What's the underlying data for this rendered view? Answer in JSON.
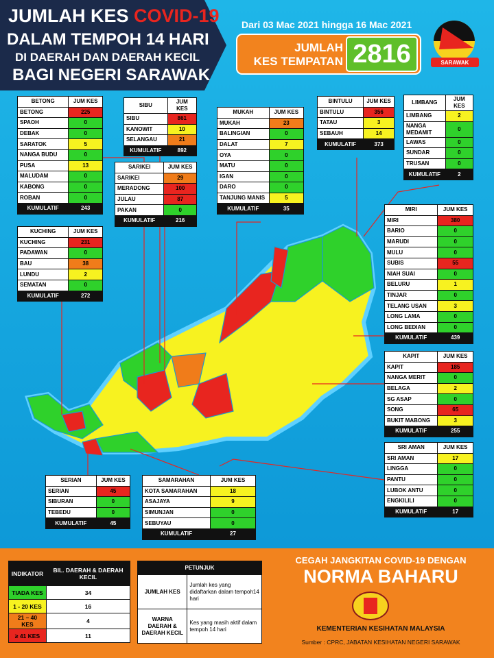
{
  "header": {
    "title_a": "JUMLAH KES",
    "title_b": "COVID-19",
    "title_line2": "DALAM TEMPOH 14 HARI",
    "title_line3": "DI DAERAH DAN DAERAH KECIL",
    "title_line4": "BAGI NEGERI SARAWAK",
    "date_range": "Dari 03 Mac 2021 hingga 16 Mac 2021",
    "total_label_1": "JUMLAH",
    "total_label_2": "KES TEMPATAN",
    "total_value": 2816,
    "logo_text": "SARAWAK"
  },
  "divisions": [
    {
      "name": "BETONG",
      "column": "JUM KES",
      "rows": [
        {
          "name": "BETONG",
          "cases": 225,
          "color": "#e8251f"
        },
        {
          "name": "SPAOH",
          "cases": 0,
          "color": "#2fd12b"
        },
        {
          "name": "DEBAK",
          "cases": 0,
          "color": "#2fd12b"
        },
        {
          "name": "SARATOK",
          "cases": 5,
          "color": "#f7f220"
        },
        {
          "name": "NANGA BUDU",
          "cases": 0,
          "color": "#2fd12b"
        },
        {
          "name": "PUSA",
          "cases": 13,
          "color": "#f7f220"
        },
        {
          "name": "MALUDAM",
          "cases": 0,
          "color": "#2fd12b"
        },
        {
          "name": "KABONG",
          "cases": 0,
          "color": "#2fd12b"
        },
        {
          "name": "ROBAN",
          "cases": 0,
          "color": "#2fd12b"
        }
      ],
      "total_label": "KUMULATIF",
      "total": 243
    },
    {
      "name": "SIBU",
      "column": "JUM KES",
      "rows": [
        {
          "name": "SIBU",
          "cases": 861,
          "color": "#e8251f"
        },
        {
          "name": "KANOWIT",
          "cases": 10,
          "color": "#f7f220"
        },
        {
          "name": "SELANGAU",
          "cases": 21,
          "color": "#f07c1a"
        }
      ],
      "total_label": "KUMULATIF",
      "total": 892
    },
    {
      "name": "SARIKEI",
      "column": "JUM KES",
      "rows": [
        {
          "name": "SARIKEI",
          "cases": 29,
          "color": "#f07c1a"
        },
        {
          "name": "MERADONG",
          "cases": 100,
          "color": "#e8251f"
        },
        {
          "name": "JULAU",
          "cases": 87,
          "color": "#e8251f"
        },
        {
          "name": "PAKAN",
          "cases": 0,
          "color": "#2fd12b"
        }
      ],
      "total_label": "KUMULATIF",
      "total": 216
    },
    {
      "name": "MUKAH",
      "column": "JUM KES",
      "rows": [
        {
          "name": "MUKAH",
          "cases": 23,
          "color": "#f07c1a"
        },
        {
          "name": "BALINGIAN",
          "cases": 0,
          "color": "#2fd12b"
        },
        {
          "name": "DALAT",
          "cases": 7,
          "color": "#f7f220"
        },
        {
          "name": "OYA",
          "cases": 0,
          "color": "#2fd12b"
        },
        {
          "name": "MATU",
          "cases": 0,
          "color": "#2fd12b"
        },
        {
          "name": "IGAN",
          "cases": 0,
          "color": "#2fd12b"
        },
        {
          "name": "DARO",
          "cases": 0,
          "color": "#2fd12b"
        },
        {
          "name": "TANJUNG MANIS",
          "cases": 5,
          "color": "#f7f220"
        }
      ],
      "total_label": "KUMULATIF",
      "total": 35
    },
    {
      "name": "BINTULU",
      "column": "JUM KES",
      "rows": [
        {
          "name": "BINTULU",
          "cases": 356,
          "color": "#e8251f"
        },
        {
          "name": "TATAU",
          "cases": 3,
          "color": "#f7f220"
        },
        {
          "name": "SEBAUH",
          "cases": 14,
          "color": "#f7f220"
        }
      ],
      "total_label": "KUMULATIF",
      "total": 373
    },
    {
      "name": "LIMBANG",
      "column": "JUM KES",
      "rows": [
        {
          "name": "LIMBANG",
          "cases": 2,
          "color": "#f7f220"
        },
        {
          "name": "NANGA MEDAMIT",
          "cases": 0,
          "color": "#2fd12b"
        },
        {
          "name": "LAWAS",
          "cases": 0,
          "color": "#2fd12b"
        },
        {
          "name": "SUNDAR",
          "cases": 0,
          "color": "#2fd12b"
        },
        {
          "name": "TRUSAN",
          "cases": 0,
          "color": "#2fd12b"
        }
      ],
      "total_label": "KUMULATIF",
      "total": 2
    },
    {
      "name": "KUCHING",
      "column": "JUM KES",
      "rows": [
        {
          "name": "KUCHING",
          "cases": 231,
          "color": "#e8251f"
        },
        {
          "name": "PADAWAN",
          "cases": 0,
          "color": "#2fd12b"
        },
        {
          "name": "BAU",
          "cases": 38,
          "color": "#f07c1a"
        },
        {
          "name": "LUNDU",
          "cases": 2,
          "color": "#f7f220"
        },
        {
          "name": "SEMATAN",
          "cases": 0,
          "color": "#2fd12b"
        }
      ],
      "total_label": "KUMULATIF",
      "total": 272
    },
    {
      "name": "MIRI",
      "column": "JUM KES",
      "rows": [
        {
          "name": "MIRI",
          "cases": 380,
          "color": "#e8251f"
        },
        {
          "name": "BARIO",
          "cases": 0,
          "color": "#2fd12b"
        },
        {
          "name": "MARUDI",
          "cases": 0,
          "color": "#2fd12b"
        },
        {
          "name": "MULU",
          "cases": 0,
          "color": "#2fd12b"
        },
        {
          "name": "SUBIS",
          "cases": 55,
          "color": "#e8251f"
        },
        {
          "name": "NIAH SUAI",
          "cases": 0,
          "color": "#2fd12b"
        },
        {
          "name": "BELURU",
          "cases": 1,
          "color": "#f7f220"
        },
        {
          "name": "TINJAR",
          "cases": 0,
          "color": "#2fd12b"
        },
        {
          "name": "TELANG USAN",
          "cases": 3,
          "color": "#f7f220"
        },
        {
          "name": "LONG LAMA",
          "cases": 0,
          "color": "#2fd12b"
        },
        {
          "name": "LONG BEDIAN",
          "cases": 0,
          "color": "#2fd12b"
        }
      ],
      "total_label": "KUMULATIF",
      "total": 439
    },
    {
      "name": "KAPIT",
      "column": "JUM KES",
      "rows": [
        {
          "name": "KAPIT",
          "cases": 185,
          "color": "#e8251f"
        },
        {
          "name": "NANGA MERIT",
          "cases": 0,
          "color": "#2fd12b"
        },
        {
          "name": "BELAGA",
          "cases": 2,
          "color": "#f7f220"
        },
        {
          "name": "SG ASAP",
          "cases": 0,
          "color": "#2fd12b"
        },
        {
          "name": "SONG",
          "cases": 65,
          "color": "#e8251f"
        },
        {
          "name": "BUKIT MABONG",
          "cases": 3,
          "color": "#f7f220"
        }
      ],
      "total_label": "KUMULATIF",
      "total": 255
    },
    {
      "name": "SRI AMAN",
      "column": "JUM KES",
      "rows": [
        {
          "name": "SRI AMAN",
          "cases": 17,
          "color": "#f7f220"
        },
        {
          "name": "LINGGA",
          "cases": 0,
          "color": "#2fd12b"
        },
        {
          "name": "PANTU",
          "cases": 0,
          "color": "#2fd12b"
        },
        {
          "name": "LUBOK ANTU",
          "cases": 0,
          "color": "#2fd12b"
        },
        {
          "name": "ENGKILILI",
          "cases": 0,
          "color": "#2fd12b"
        }
      ],
      "total_label": "KUMULATIF",
      "total": 17
    },
    {
      "name": "SERIAN",
      "column": "JUM KES",
      "rows": [
        {
          "name": "SERIAN",
          "cases": 45,
          "color": "#e8251f"
        },
        {
          "name": "SIBURAN",
          "cases": 0,
          "color": "#2fd12b"
        },
        {
          "name": "TEBEDU",
          "cases": 0,
          "color": "#2fd12b"
        }
      ],
      "total_label": "KUMULATIF",
      "total": 45
    },
    {
      "name": "SAMARAHAN",
      "column": "JUM KES",
      "rows": [
        {
          "name": "KOTA SAMARAHAN",
          "cases": 18,
          "color": "#f7f220"
        },
        {
          "name": "ASAJAYA",
          "cases": 9,
          "color": "#f7f220"
        },
        {
          "name": "SIMUNJAN",
          "cases": 0,
          "color": "#2fd12b"
        },
        {
          "name": "SEBUYAU",
          "cases": 0,
          "color": "#2fd12b"
        }
      ],
      "total_label": "KUMULATIF",
      "total": 27
    }
  ],
  "legend": {
    "headers": [
      "INDIKATOR",
      "BIL. DAERAH & DAERAH KECIL"
    ],
    "rows": [
      {
        "label": "TIADA KES",
        "count": 34,
        "color": "#2fd12b"
      },
      {
        "label": "1 - 20 KES",
        "count": 16,
        "color": "#f7f220"
      },
      {
        "label": "21 – 40 KES",
        "count": 4,
        "color": "#f07c1a"
      },
      {
        "label": "≥ 41 KES",
        "count": 11,
        "color": "#e8251f"
      }
    ]
  },
  "guide": {
    "title": "PETUNJUK",
    "rows": [
      {
        "term": "JUMLAH KES",
        "desc": "Jumlah kes yang didaftarkan dalam tempoh14 hari"
      },
      {
        "term": "WARNA DAERAH & DAERAH KECIL",
        "desc": "Kes yang masih aktif dalam tempoh 14 hari"
      }
    ]
  },
  "footer": {
    "slogan_1": "CEGAH JANGKITAN COVID-19 DENGAN",
    "slogan_2": "NORMA BAHARU",
    "ministry": "KEMENTERIAN KESIHATAN MALAYSIA",
    "source": "Sumber : CPRC, JABATAN KESIHATAN NEGERI SARAWAK"
  }
}
